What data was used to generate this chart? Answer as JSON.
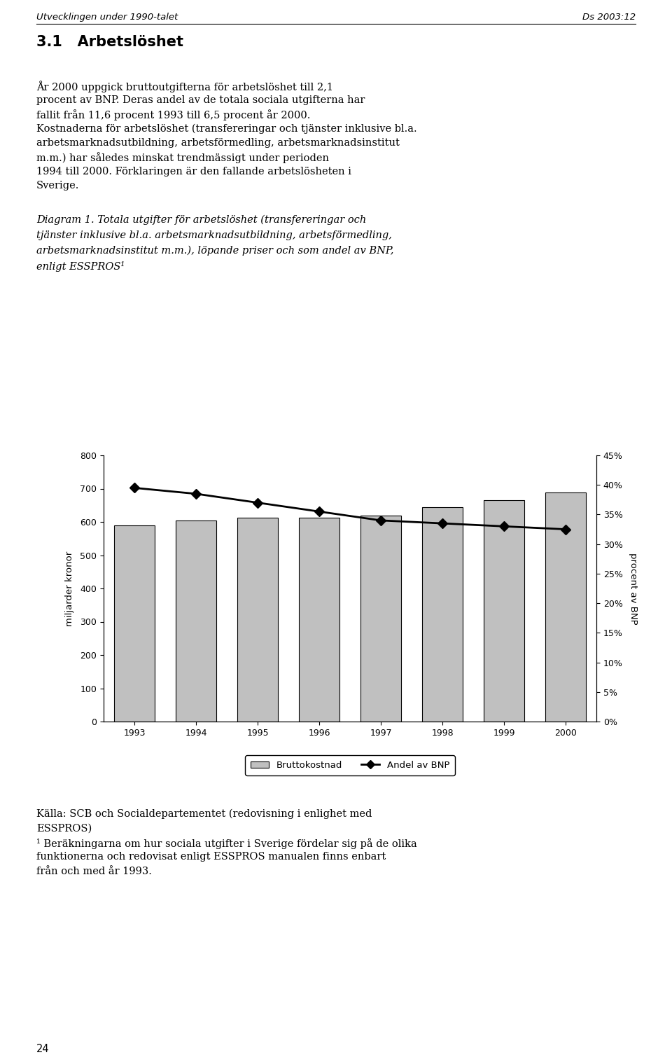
{
  "years": [
    1993,
    1994,
    1995,
    1996,
    1997,
    1998,
    1999,
    2000
  ],
  "bar_values": [
    590,
    605,
    613,
    613,
    618,
    645,
    665,
    688
  ],
  "line_values": [
    39.5,
    38.5,
    37.0,
    35.5,
    34.0,
    33.5,
    33.0,
    32.5
  ],
  "bar_color": "#c0c0c0",
  "bar_edge_color": "#000000",
  "line_color": "#000000",
  "ylabel_left": "miljarder kronor",
  "ylabel_right": "procent av BNP",
  "ylim_left": [
    0,
    800
  ],
  "ylim_right": [
    0,
    45
  ],
  "yticks_left": [
    0,
    100,
    200,
    300,
    400,
    500,
    600,
    700,
    800
  ],
  "yticks_right_vals": [
    0,
    5,
    10,
    15,
    20,
    25,
    30,
    35,
    40,
    45
  ],
  "yticks_right_labels": [
    "0%",
    "5%",
    "10%",
    "15%",
    "20%",
    "25%",
    "30%",
    "35%",
    "40%",
    "45%"
  ],
  "legend_bar_label": "Bruttokostnad",
  "legend_line_label": "Andel av BNP",
  "page_header_left": "Utvecklingen under 1990-talet",
  "page_header_right": "Ds 2003:12",
  "section_title": "3.1   Arbetslöshet",
  "diagram_caption_lines": [
    "Diagram 1. Totala utgifter för arbetslöshet (transfereringar och",
    "tjänster inklusive bl.a. arbetsmarknadsutbildning, arbetsförmedling,",
    "arbetsmarknadsinstitut m.m.), löpande priser och som andel av BNP,",
    "enligt ESSPROS¹"
  ],
  "source_lines": [
    "Källa: SCB och Socialdepartementet (redovisning i enlighet med",
    "ESSPROS)",
    "¹ Beräkningarna om hur sociala utgifter i Sverige fördelar sig på de olika",
    "funktionerna och redovisat enligt ESSPROS manualen finns enbart",
    "från och med år 1993."
  ],
  "page_number": "24",
  "fig_width": 9.6,
  "fig_height": 15.16,
  "dpi": 100
}
